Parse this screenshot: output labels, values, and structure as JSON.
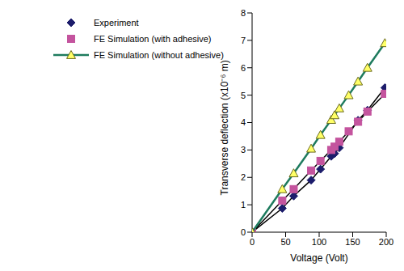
{
  "chart_data": {
    "type": "scatter",
    "xlabel": "Voltage (Volt)",
    "ylabel": "Transverse deflection (x10⁻⁶ m)",
    "xlim": [
      0,
      200
    ],
    "ylim": [
      0,
      8
    ],
    "xticks": [
      0,
      50,
      100,
      150,
      200
    ],
    "yticks": [
      0,
      1,
      2,
      3,
      4,
      5,
      6,
      7,
      8
    ],
    "legend": "upper left",
    "series": [
      {
        "name": "Experiment",
        "color": "#1c1c6b",
        "marker": "diamond",
        "line_style": "solid",
        "x": [
          0,
          45,
          62,
          88,
          102,
          118,
          123,
          130,
          158,
          172,
          198
        ],
        "values": [
          0,
          0.87,
          1.32,
          1.9,
          2.3,
          2.77,
          2.87,
          3.08,
          4.08,
          4.45,
          5.27
        ]
      },
      {
        "name": "FE Simulation (with adhesive)",
        "color": "#c4549e",
        "marker": "square",
        "line_style": "solid",
        "x": [
          0,
          45,
          62,
          88,
          102,
          118,
          123,
          130,
          144,
          158,
          172,
          198
        ],
        "values": [
          0,
          1.15,
          1.57,
          2.25,
          2.6,
          3.0,
          3.12,
          3.3,
          3.68,
          4.03,
          4.4,
          5.05
        ]
      },
      {
        "name": "FE Simulation (without adhesive)",
        "color": "#ffff66",
        "marker": "triangle",
        "line_style": "solid",
        "x": [
          0,
          45,
          62,
          88,
          102,
          118,
          123,
          130,
          144,
          158,
          172,
          198
        ],
        "values": [
          0,
          1.57,
          2.15,
          3.05,
          3.55,
          4.1,
          4.27,
          4.52,
          5.0,
          5.5,
          6.0,
          6.9
        ]
      }
    ]
  }
}
